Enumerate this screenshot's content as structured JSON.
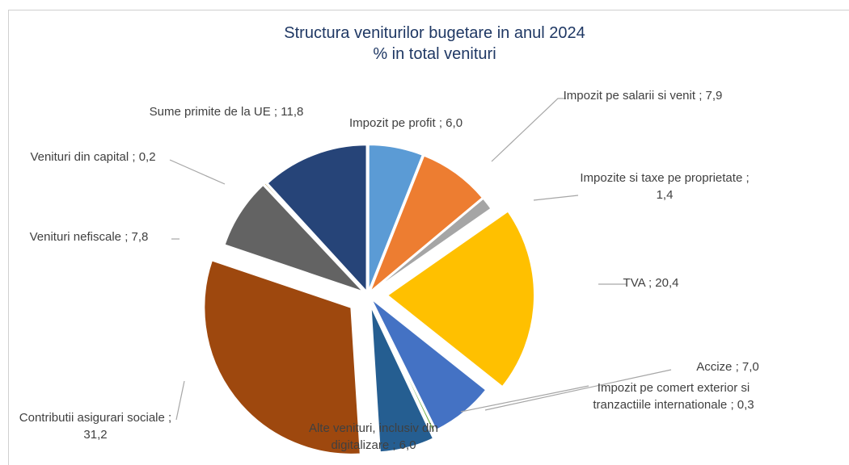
{
  "chart_data": {
    "type": "pie",
    "title": "Structura veniturilor bugetare in anul 2024",
    "subtitle": "% in total venituri",
    "categories": [
      "Impozit pe profit",
      "Impozit pe salarii si venit",
      "Impozite si taxe pe proprietate",
      "TVA",
      "Accize",
      "Impozit pe comert exterior si tranzactiile internationale",
      "Alte venituri, inclusiv din digitalizare",
      "Contributii asigurari sociale",
      "Venituri nefiscale",
      "Venituri din capital",
      "Sume primite de la UE"
    ],
    "values": [
      6.0,
      7.9,
      1.4,
      20.4,
      7.0,
      0.3,
      6.0,
      31.2,
      7.8,
      0.2,
      11.8
    ],
    "value_labels": [
      "; 6,0",
      "; 7,9",
      "; 1,4",
      "; 20,4",
      "; 7,0",
      "; 0,3",
      "; 6,0",
      "; 31,2",
      "; 7,8",
      "; 0,2",
      "; 11,8"
    ],
    "colors": [
      "#5b9bd5",
      "#ed7d31",
      "#a5a5a5",
      "#ffc000",
      "#4472c4",
      "#70ad47",
      "#255e91",
      "#9e480e",
      "#636363",
      "#997300",
      "#264478"
    ]
  }
}
